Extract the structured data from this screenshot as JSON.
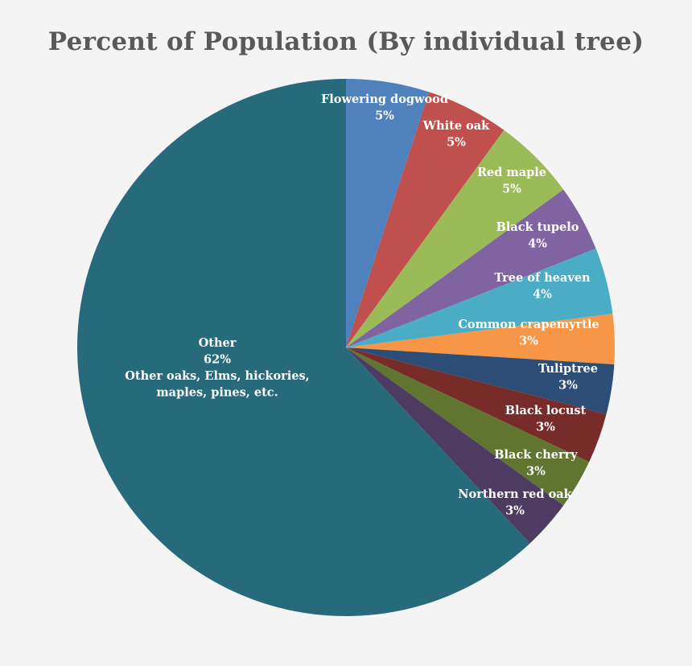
{
  "chart_data": {
    "type": "pie",
    "title": "Percent of Population (By individual tree)",
    "start_angle_deg": 0,
    "direction": "clockwise",
    "slices": [
      {
        "label": "Flowering dogwood",
        "pct_label": "5%",
        "value": 5,
        "color": "#4f81bd"
      },
      {
        "label": "White oak",
        "pct_label": "5%",
        "value": 5,
        "color": "#c0504d"
      },
      {
        "label": "Red maple",
        "pct_label": "5%",
        "value": 5,
        "color": "#9bbb59"
      },
      {
        "label": "Black tupelo",
        "pct_label": "4%",
        "value": 4,
        "color": "#8064a2"
      },
      {
        "label": "Tree of heaven",
        "pct_label": "4%",
        "value": 4,
        "color": "#4bacc6"
      },
      {
        "label": "Common crapemyrtle",
        "pct_label": "3%",
        "value": 3,
        "color": "#f79646"
      },
      {
        "label": "Tuliptree",
        "pct_label": "3%",
        "value": 3,
        "color": "#2c4d75"
      },
      {
        "label": "Black locust",
        "pct_label": "3%",
        "value": 3,
        "color": "#772c2a"
      },
      {
        "label": "Black cherry",
        "pct_label": "3%",
        "value": 3,
        "color": "#5f7530"
      },
      {
        "label": "Northern red oak",
        "pct_label": "3%",
        "value": 3,
        "color": "#4d3b62"
      },
      {
        "label": "Other",
        "pct_label": "62%",
        "value": 62,
        "color": "#276a7c",
        "note": [
          "Other oaks, Elms, hickories,",
          "maples, pines, etc."
        ]
      }
    ]
  }
}
